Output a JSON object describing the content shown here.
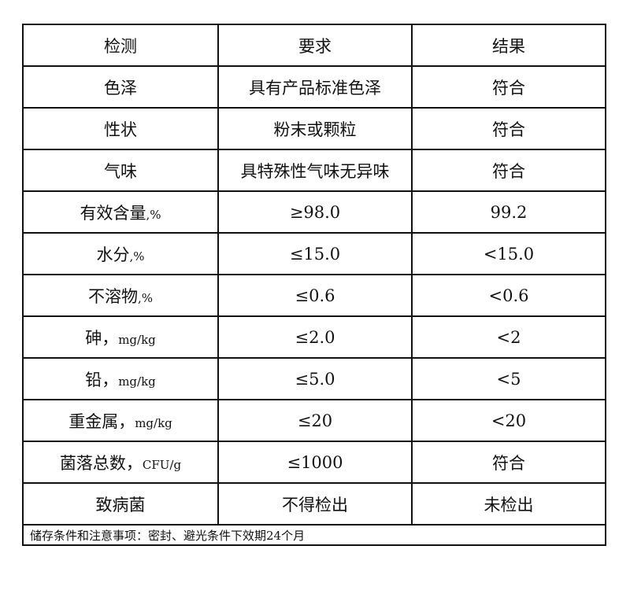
{
  "header": [
    "检测",
    "要求",
    "结果"
  ],
  "rows": [
    {
      "item": "色泽",
      "unit": "",
      "req": "具有产品标准色泽",
      "res": "符合"
    },
    {
      "item": "性状",
      "unit": "",
      "req": "粉末或颗粒",
      "res": "符合"
    },
    {
      "item": "气味",
      "unit": "",
      "req": "具特殊性气味无异味",
      "res": "符合"
    },
    {
      "item": "有效含量",
      "unit": ",%",
      "req": "≥98.0",
      "res": "99.2"
    },
    {
      "item": "水分",
      "unit": ",%",
      "req": "≤15.0",
      "res": "<15.0"
    },
    {
      "item": "不溶物",
      "unit": ",%",
      "req": "≤0.6",
      "res": "<0.6"
    },
    {
      "item": "砷，",
      "unit": "mg/kg",
      "req": "≤2.0",
      "res": "<2"
    },
    {
      "item": "铅，",
      "unit": "mg/kg",
      "req": "≤5.0",
      "res": "<5"
    },
    {
      "item": "重金属，",
      "unit": "mg/kg",
      "req": "≤20",
      "res": "<20"
    },
    {
      "item": "菌落总数，",
      "unit": "CFU/g",
      "req": "≤1000",
      "res": "符合"
    },
    {
      "item": "致病菌",
      "unit": "",
      "req": "不得检出",
      "res": "未检出"
    }
  ],
  "footer": "储存条件和注意事项：密封、避光条件下效期24个月"
}
